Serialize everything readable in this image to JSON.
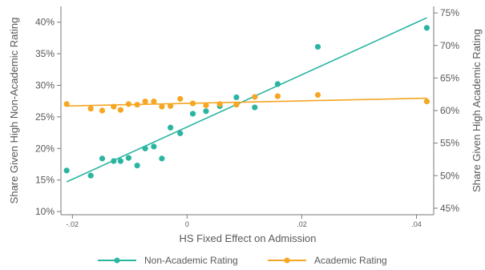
{
  "chart_data": {
    "type": "scatter",
    "title": "",
    "xlabel": "HS Fixed Effect on Admission",
    "ylabel_left": "Share Given High Non-Academic Rating",
    "ylabel_right": "Share Given High Academic Rating",
    "xlim": [
      -0.022,
      0.043
    ],
    "ylim_left": [
      0.095,
      0.425
    ],
    "ylim_right": [
      0.44,
      0.76
    ],
    "x_ticks": [
      {
        "value": -0.02,
        "label": "-.02"
      },
      {
        "value": 0,
        "label": "0"
      },
      {
        "value": 0.02,
        "label": ".02"
      },
      {
        "value": 0.04,
        "label": ".04"
      }
    ],
    "y_ticks_left": [
      {
        "value": 0.1,
        "label": "10%"
      },
      {
        "value": 0.15,
        "label": "15%"
      },
      {
        "value": 0.2,
        "label": "20%"
      },
      {
        "value": 0.25,
        "label": "25%"
      },
      {
        "value": 0.3,
        "label": "30%"
      },
      {
        "value": 0.35,
        "label": "35%"
      },
      {
        "value": 0.4,
        "label": "40%"
      }
    ],
    "y_ticks_right": [
      {
        "value": 0.45,
        "label": "45%"
      },
      {
        "value": 0.5,
        "label": "50%"
      },
      {
        "value": 0.55,
        "label": "55%"
      },
      {
        "value": 0.6,
        "label": "60%"
      },
      {
        "value": 0.65,
        "label": "65%"
      },
      {
        "value": 0.7,
        "label": "70%"
      },
      {
        "value": 0.75,
        "label": "75%"
      }
    ],
    "grid": false,
    "legend_position": "bottom",
    "series": [
      {
        "name": "Non-Academic Rating",
        "axis": "left",
        "color": "#2ab5a0",
        "points": [
          {
            "x": -0.021,
            "y": 0.165
          },
          {
            "x": -0.0168,
            "y": 0.157
          },
          {
            "x": -0.0148,
            "y": 0.184
          },
          {
            "x": -0.0128,
            "y": 0.18
          },
          {
            "x": -0.0116,
            "y": 0.18
          },
          {
            "x": -0.0102,
            "y": 0.185
          },
          {
            "x": -0.0087,
            "y": 0.173
          },
          {
            "x": -0.0073,
            "y": 0.2
          },
          {
            "x": -0.0058,
            "y": 0.203
          },
          {
            "x": -0.0044,
            "y": 0.184
          },
          {
            "x": -0.0029,
            "y": 0.233
          },
          {
            "x": -0.0012,
            "y": 0.224
          },
          {
            "x": 0.001,
            "y": 0.255
          },
          {
            "x": 0.0033,
            "y": 0.259
          },
          {
            "x": 0.0057,
            "y": 0.267
          },
          {
            "x": 0.0086,
            "y": 0.281
          },
          {
            "x": 0.0118,
            "y": 0.265
          },
          {
            "x": 0.0158,
            "y": 0.302
          },
          {
            "x": 0.0228,
            "y": 0.361
          },
          {
            "x": 0.0418,
            "y": 0.391
          }
        ],
        "fit": {
          "x": [
            -0.021,
            0.0418
          ],
          "y": [
            0.147,
            0.407
          ]
        }
      },
      {
        "name": "Academic Rating",
        "axis": "right",
        "color": "#f5a623",
        "points": [
          {
            "x": -0.021,
            "y": 0.61
          },
          {
            "x": -0.0168,
            "y": 0.603
          },
          {
            "x": -0.0148,
            "y": 0.6
          },
          {
            "x": -0.0128,
            "y": 0.606
          },
          {
            "x": -0.0116,
            "y": 0.601
          },
          {
            "x": -0.0102,
            "y": 0.61
          },
          {
            "x": -0.0087,
            "y": 0.609
          },
          {
            "x": -0.0073,
            "y": 0.614
          },
          {
            "x": -0.0058,
            "y": 0.614
          },
          {
            "x": -0.0044,
            "y": 0.606
          },
          {
            "x": -0.0029,
            "y": 0.607
          },
          {
            "x": -0.0012,
            "y": 0.618
          },
          {
            "x": 0.001,
            "y": 0.611
          },
          {
            "x": 0.0033,
            "y": 0.608
          },
          {
            "x": 0.0057,
            "y": 0.61
          },
          {
            "x": 0.0086,
            "y": 0.609
          },
          {
            "x": 0.0118,
            "y": 0.621
          },
          {
            "x": 0.0158,
            "y": 0.622
          },
          {
            "x": 0.0228,
            "y": 0.624
          },
          {
            "x": 0.0418,
            "y": 0.614
          }
        ],
        "fit": {
          "x": [
            -0.021,
            0.0418
          ],
          "y": [
            0.607,
            0.619
          ]
        }
      }
    ]
  }
}
